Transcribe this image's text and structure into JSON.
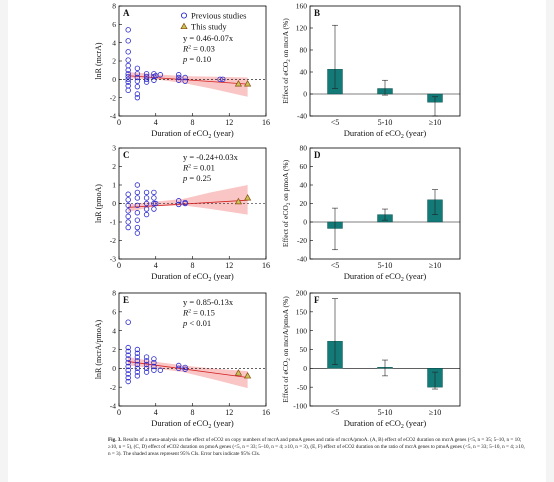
{
  "figure": {
    "caption_label": "Fig. 3.",
    "caption_text": "Results of a meta-analysis on the effect of eCO2 on copy numbers of mcrA and pmoA genes and ratio of mcrA/pmoA. (A, B) effect of eCO2 duration on mcrA genes (<5, n = 35; 5–10, n = 10; ≥10, n = 5), (C, D) effect of eCO2 duration on pmoA genes (<5, n = 33; 5–10, n = 4; ≥10, n = 3), (E, F) effect of eCO2 duration on the ratio of mcrA genes to pmoA genes (<5, n = 33; 5–10, n = 4; ≥10, n = 3). The shaded areas represent 95% CIs. Error bars indicate 95% CIs."
  },
  "colors": {
    "previous": "#2b2bd0",
    "this_study_fill": "#c8c455",
    "this_study_stroke": "#8a4b10",
    "bar": "#137a78",
    "band": "#f7b6b6",
    "fit": "#d42020"
  },
  "chart_data": [
    {
      "panel": "A",
      "type": "scatter",
      "xlabel": "Duration of eCO2 (year)",
      "ylabel": "lnR (mcrA)",
      "xlim": [
        0,
        16
      ],
      "ylim": [
        -4,
        8
      ],
      "xticks": [
        0,
        4,
        8,
        12,
        16
      ],
      "yticks": [
        -4,
        -2,
        0,
        2,
        4,
        6,
        8
      ],
      "legend": [
        "Previous studies",
        "This study"
      ],
      "stats": [
        "y = 0.46-0.07x",
        "R2 = 0.03",
        "p = 0.10"
      ],
      "fit": {
        "intercept": 0.46,
        "slope": -0.07,
        "x_range": [
          1,
          14
        ]
      },
      "ci_band": {
        "lower": [
          [
            1,
            0.1
          ],
          [
            4,
            0.0
          ],
          [
            7,
            -0.4
          ],
          [
            10,
            -1.0
          ],
          [
            14,
            -1.9
          ]
        ],
        "upper": [
          [
            1,
            0.8
          ],
          [
            4,
            0.55
          ],
          [
            7,
            0.35
          ],
          [
            10,
            0.3
          ],
          [
            14,
            0.2
          ]
        ]
      },
      "previous": [
        [
          1,
          5.4
        ],
        [
          1,
          4.2
        ],
        [
          1,
          3.0
        ],
        [
          1,
          2.1
        ],
        [
          1,
          1.5
        ],
        [
          1,
          1.0
        ],
        [
          1,
          0.6
        ],
        [
          1,
          0.3
        ],
        [
          1,
          0.0
        ],
        [
          1,
          -0.3
        ],
        [
          1,
          -0.7
        ],
        [
          1,
          -1.2
        ],
        [
          2,
          1.2
        ],
        [
          2,
          0.6
        ],
        [
          2,
          0.2
        ],
        [
          2,
          -0.2
        ],
        [
          2,
          -0.8
        ],
        [
          2,
          -1.6
        ],
        [
          2,
          -2.0
        ],
        [
          3,
          0.6
        ],
        [
          3,
          0.3
        ],
        [
          3,
          0.0
        ],
        [
          3,
          -0.3
        ],
        [
          3.8,
          0.6
        ],
        [
          3.8,
          0.3
        ],
        [
          3.8,
          -0.1
        ],
        [
          4,
          0.4
        ],
        [
          4.5,
          0.5
        ],
        [
          6.5,
          0.5
        ],
        [
          6.5,
          0.2
        ],
        [
          6.5,
          -0.1
        ],
        [
          7.2,
          0.2
        ],
        [
          7.2,
          -0.2
        ],
        [
          11,
          0.0
        ],
        [
          11.3,
          0.0
        ]
      ],
      "this_study": [
        [
          13,
          -0.5
        ],
        [
          14,
          -0.5
        ]
      ]
    },
    {
      "panel": "B",
      "type": "bar",
      "xlabel": "Duration of eCO2 (year)",
      "ylabel": "Effect of eCO2 on mcrA (%)",
      "ylim": [
        -40,
        160
      ],
      "yticks": [
        -40,
        0,
        40,
        80,
        120,
        160
      ],
      "categories": [
        "<5",
        "5-10",
        "≥10"
      ],
      "values": [
        45,
        10,
        -15
      ],
      "ci": [
        [
          10,
          125
        ],
        [
          -2,
          25
        ],
        [
          -40,
          -5
        ]
      ]
    },
    {
      "panel": "C",
      "type": "scatter",
      "xlabel": "Duration of eCO2 (year)",
      "ylabel": "lnR (pmoA)",
      "xlim": [
        0,
        16
      ],
      "ylim": [
        -3,
        3
      ],
      "xticks": [
        0,
        4,
        8,
        12,
        16
      ],
      "yticks": [
        -3,
        -2,
        -1,
        0,
        1,
        2,
        3
      ],
      "stats": [
        "y = -0.24+0.03x",
        "R2 = 0.01",
        "p = 0.25"
      ],
      "fit": {
        "intercept": -0.24,
        "slope": 0.03,
        "x_range": [
          1,
          14
        ]
      },
      "ci_band": {
        "lower": [
          [
            1,
            -0.45
          ],
          [
            4,
            -0.15
          ],
          [
            7,
            -0.1
          ],
          [
            10,
            -0.3
          ],
          [
            14,
            -0.6
          ]
        ],
        "upper": [
          [
            1,
            -0.05
          ],
          [
            4,
            0.1
          ],
          [
            7,
            0.25
          ],
          [
            10,
            0.6
          ],
          [
            14,
            1.0
          ]
        ]
      },
      "previous": [
        [
          1,
          -0.4
        ],
        [
          1,
          -0.7
        ],
        [
          1,
          -1.0
        ],
        [
          1,
          -1.3
        ],
        [
          1,
          0.2
        ],
        [
          1,
          0.5
        ],
        [
          1,
          -0.1
        ],
        [
          2,
          1.0
        ],
        [
          2,
          0.6
        ],
        [
          2,
          0.3
        ],
        [
          2,
          -0.1
        ],
        [
          2,
          -0.5
        ],
        [
          2,
          -0.9
        ],
        [
          2,
          -1.3
        ],
        [
          2,
          -1.6
        ],
        [
          3,
          0.6
        ],
        [
          3,
          0.3
        ],
        [
          3,
          0.0
        ],
        [
          3,
          -0.3
        ],
        [
          3,
          -0.6
        ],
        [
          3.8,
          0.6
        ],
        [
          3.8,
          0.3
        ],
        [
          3.8,
          0.0
        ],
        [
          3.8,
          -0.3
        ],
        [
          4,
          0.0
        ],
        [
          6.5,
          0.15
        ],
        [
          6.5,
          -0.05
        ],
        [
          7.2,
          0.05
        ],
        [
          7.2,
          0.0
        ]
      ],
      "this_study": [
        [
          13,
          0.1
        ],
        [
          14,
          0.3
        ]
      ]
    },
    {
      "panel": "D",
      "type": "bar",
      "xlabel": "Duration of eCO2 (year)",
      "ylabel": "Effect of eCO2 on pmoA (%)",
      "ylim": [
        -40,
        80
      ],
      "yticks": [
        -40,
        -20,
        0,
        20,
        40,
        60,
        80
      ],
      "categories": [
        "<5",
        "5-10",
        "≥10"
      ],
      "values": [
        -7,
        8,
        24
      ],
      "ci": [
        [
          -30,
          15
        ],
        [
          2,
          14
        ],
        [
          8,
          35
        ]
      ]
    },
    {
      "panel": "E",
      "type": "scatter",
      "xlabel": "Duration of eCO2 (year)",
      "ylabel": "lnR (mcrA/pmoA)",
      "xlim": [
        0,
        16
      ],
      "ylim": [
        -4,
        8
      ],
      "xticks": [
        0,
        4,
        8,
        12,
        16
      ],
      "yticks": [
        -4,
        -2,
        0,
        2,
        4,
        6,
        8
      ],
      "stats": [
        "y = 0.85-0.13x",
        "R2 = 0.15",
        "p < 0.01"
      ],
      "fit": {
        "intercept": 0.85,
        "slope": -0.13,
        "x_range": [
          1,
          14
        ]
      },
      "ci_band": {
        "lower": [
          [
            1,
            0.3
          ],
          [
            4,
            0.0
          ],
          [
            7,
            -0.4
          ],
          [
            10,
            -1.1
          ],
          [
            14,
            -2.1
          ]
        ],
        "upper": [
          [
            1,
            1.2
          ],
          [
            4,
            0.7
          ],
          [
            7,
            0.3
          ],
          [
            10,
            0.0
          ],
          [
            14,
            -0.3
          ]
        ]
      },
      "previous": [
        [
          1,
          4.9
        ],
        [
          1,
          2.2
        ],
        [
          1,
          1.8
        ],
        [
          1,
          1.4
        ],
        [
          1,
          1.0
        ],
        [
          1,
          0.6
        ],
        [
          1,
          0.2
        ],
        [
          1,
          -0.2
        ],
        [
          1,
          -0.6
        ],
        [
          1,
          -1.0
        ],
        [
          1,
          -1.4
        ],
        [
          2,
          2.0
        ],
        [
          2,
          1.6
        ],
        [
          2,
          1.2
        ],
        [
          2,
          0.8
        ],
        [
          2,
          0.4
        ],
        [
          2,
          0.0
        ],
        [
          2,
          -0.4
        ],
        [
          2,
          -0.8
        ],
        [
          3,
          1.2
        ],
        [
          3,
          0.8
        ],
        [
          3,
          0.4
        ],
        [
          3,
          0.0
        ],
        [
          3,
          -0.4
        ],
        [
          3.8,
          1.0
        ],
        [
          3.8,
          0.6
        ],
        [
          3.8,
          0.2
        ],
        [
          3.8,
          -0.2
        ],
        [
          4.5,
          -0.2
        ],
        [
          6.5,
          0.3
        ],
        [
          6.5,
          0.0
        ],
        [
          7.2,
          0.1
        ],
        [
          7.2,
          -0.1
        ]
      ],
      "this_study": [
        [
          13,
          -0.5
        ],
        [
          14,
          -0.8
        ]
      ]
    },
    {
      "panel": "F",
      "type": "bar",
      "xlabel": "Duration of eCO2 (year)",
      "ylabel": "Effect of eCO2 on mcrA/pmoA (%)",
      "ylim": [
        -100,
        200
      ],
      "yticks": [
        -100,
        -50,
        0,
        50,
        100,
        150,
        200
      ],
      "categories": [
        "<5",
        "5-10",
        "≥10"
      ],
      "values": [
        72,
        3,
        -50
      ],
      "ci": [
        [
          10,
          185
        ],
        [
          -20,
          22
        ],
        [
          -55,
          -10
        ]
      ]
    }
  ]
}
